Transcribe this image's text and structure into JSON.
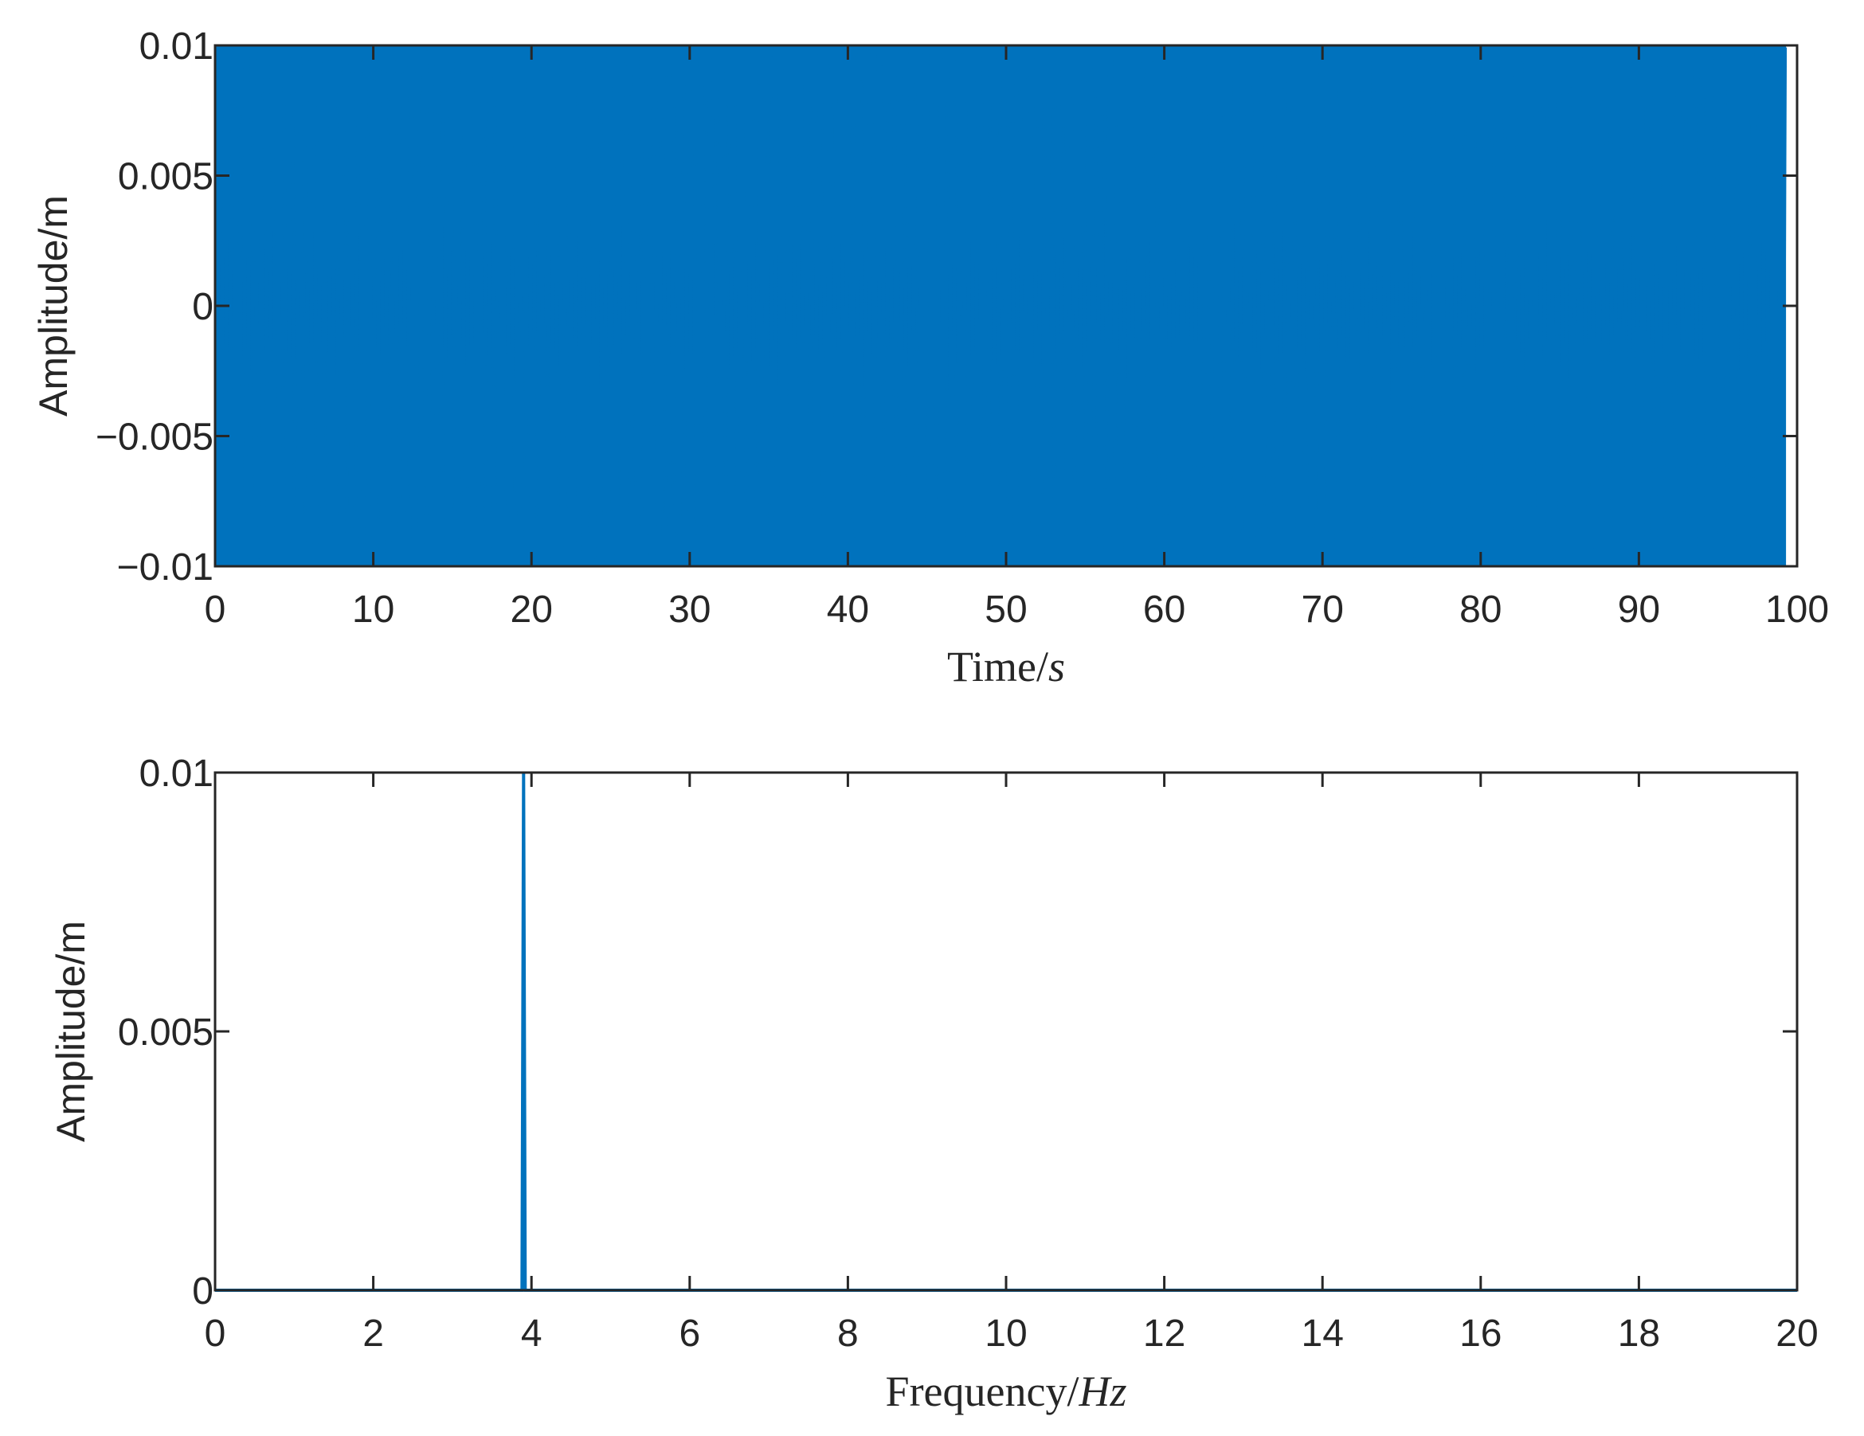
{
  "chart_data": [
    {
      "type": "line",
      "xlabel": {
        "text": "Time/",
        "var": "s"
      },
      "ylabel": "Amplitude/m",
      "xlim": [
        0,
        100
      ],
      "ylim": [
        -0.01,
        0.01
      ],
      "x_ticks": [
        0,
        10,
        20,
        30,
        40,
        50,
        60,
        70,
        80,
        90,
        100
      ],
      "x_tick_labels": [
        "0",
        "10",
        "20",
        "30",
        "40",
        "50",
        "60",
        "70",
        "80",
        "90",
        "100"
      ],
      "y_ticks": [
        -0.01,
        -0.005,
        0,
        0.005,
        0.01
      ],
      "y_tick_labels": [
        "−0.01",
        "−0.005",
        "0",
        "0.005",
        "0.01"
      ],
      "signal": {
        "amplitude": 0.01,
        "frequency_hz": 3.9,
        "duration_s": 99.3
      },
      "color": "#0072bd",
      "grid": false
    },
    {
      "type": "line",
      "xlabel": {
        "text": "Frequency/",
        "var": "Hz"
      },
      "ylabel": "Amplitude/m",
      "xlim": [
        0,
        20
      ],
      "ylim": [
        0,
        0.01
      ],
      "x_ticks": [
        0,
        2,
        4,
        6,
        8,
        10,
        12,
        14,
        16,
        18,
        20
      ],
      "x_tick_labels": [
        "0",
        "2",
        "4",
        "6",
        "8",
        "10",
        "12",
        "14",
        "16",
        "18",
        "20"
      ],
      "y_ticks": [
        0,
        0.005,
        0.01
      ],
      "y_tick_labels": [
        "0",
        "0.005",
        "0.01"
      ],
      "series_points": [
        [
          0,
          0
        ],
        [
          3.88,
          0
        ],
        [
          3.9,
          0.01
        ],
        [
          3.92,
          0
        ],
        [
          20,
          0
        ]
      ],
      "color": "#0072bd",
      "grid": false
    }
  ]
}
